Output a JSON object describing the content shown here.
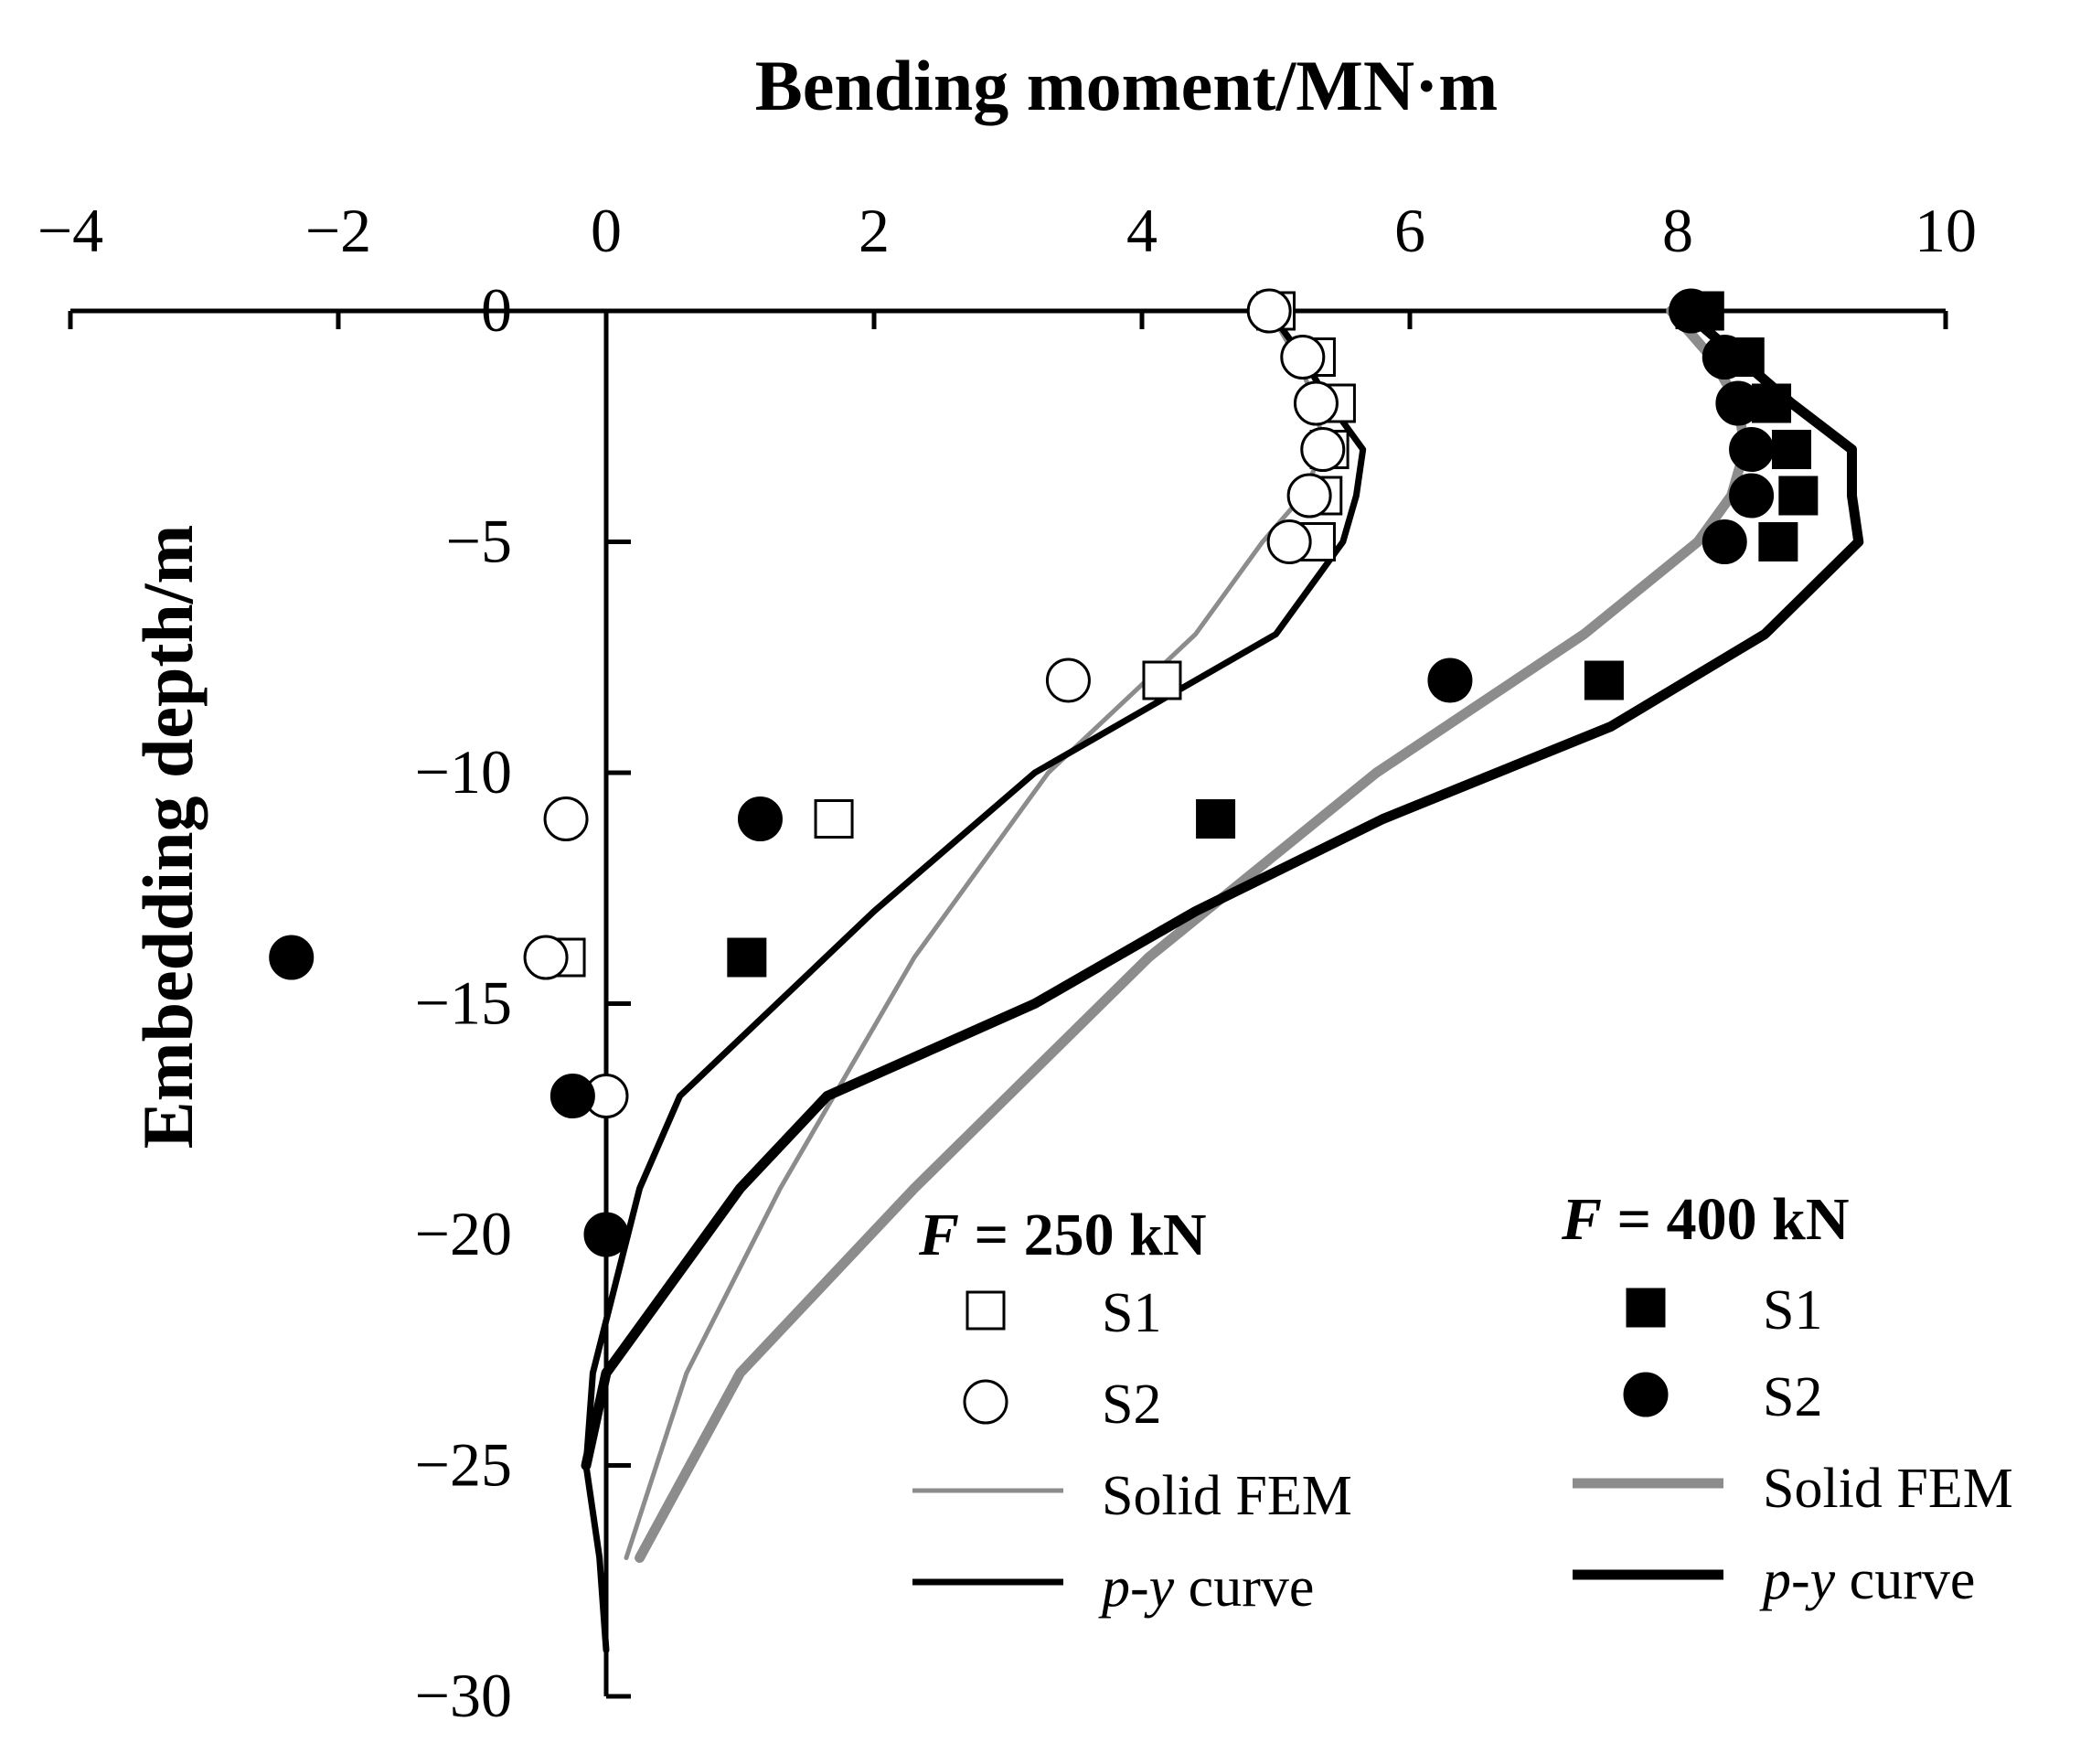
{
  "chart_data": {
    "type": "line",
    "title": "Bending moment/MN·m",
    "xlabel": "Bending moment/MN·m",
    "ylabel": "Embedding depth/m",
    "xlim": [
      -4,
      10
    ],
    "ylim": [
      -30,
      0
    ],
    "x_axis_position": "top",
    "x_ticks": [
      -4,
      -2,
      0,
      2,
      4,
      6,
      8,
      10
    ],
    "x_tick_labels": [
      "−4",
      "−2",
      "0",
      "2",
      "4",
      "6",
      "8",
      "10"
    ],
    "y_ticks": [
      0,
      -5,
      -10,
      -15,
      -20,
      -25,
      -30
    ],
    "y_tick_labels": [
      "0",
      "−5",
      "−10",
      "−15",
      "−20",
      "−25",
      "−30"
    ],
    "grid": false,
    "groups": [
      {
        "heading_var": "F",
        "heading_rest": " = 250 kN",
        "series": [
          {
            "name": "S1",
            "kind": "scatter",
            "marker": "square-open",
            "x": [
              5.0,
              5.3,
              5.45,
              5.4,
              5.35,
              5.3,
              4.15,
              1.7,
              -0.3
            ],
            "y": [
              0,
              -1,
              -2,
              -3,
              -4,
              -5,
              -8,
              -11,
              -14
            ]
          },
          {
            "name": "S2",
            "kind": "scatter",
            "marker": "circle-open",
            "x": [
              4.95,
              5.2,
              5.3,
              5.35,
              5.25,
              5.1,
              3.45,
              -0.3,
              -0.45,
              0.0
            ],
            "y": [
              0,
              -1,
              -2,
              -3,
              -4,
              -5,
              -8,
              -11,
              -14,
              -17
            ]
          },
          {
            "name": "Solid FEM",
            "kind": "line",
            "color": "#8c8c8c",
            "width": "thin",
            "x": [
              4.95,
              5.15,
              5.3,
              5.35,
              5.2,
              4.9,
              4.4,
              3.3,
              2.3,
              1.3,
              0.6,
              0.15
            ],
            "y": [
              0,
              -1,
              -2,
              -3,
              -4,
              -5,
              -7,
              -10,
              -14,
              -19,
              -23,
              -27
            ]
          },
          {
            "name": "p-y curve",
            "name_italic": "p-y",
            "name_rest": " curve",
            "kind": "line",
            "color": "#000000",
            "width": "medium",
            "x": [
              4.95,
              5.2,
              5.4,
              5.65,
              5.6,
              5.5,
              5.0,
              3.2,
              2.0,
              0.55,
              0.25,
              -0.1,
              -0.15,
              -0.05,
              0.0
            ],
            "y": [
              0,
              -1,
              -2,
              -3,
              -4,
              -5,
              -7,
              -10,
              -13,
              -17,
              -19,
              -23,
              -25,
              -27,
              -29
            ]
          }
        ]
      },
      {
        "heading_var": "F",
        "heading_rest": " = 400 kN",
        "series": [
          {
            "name": "S1",
            "kind": "scatter",
            "marker": "square-filled",
            "x": [
              8.2,
              8.5,
              8.7,
              8.85,
              8.9,
              8.75,
              7.45,
              4.55,
              1.05
            ],
            "y": [
              0,
              -1,
              -2,
              -3,
              -4,
              -5,
              -8,
              -11,
              -14
            ]
          },
          {
            "name": "S2",
            "kind": "scatter",
            "marker": "circle-filled",
            "x": [
              8.1,
              8.35,
              8.45,
              8.55,
              8.55,
              8.35,
              6.3,
              1.15,
              -2.35,
              -0.25,
              0.0
            ],
            "y": [
              0,
              -1,
              -2,
              -3,
              -4,
              -5,
              -8,
              -11,
              -14,
              -17,
              -20
            ]
          },
          {
            "name": "Solid FEM",
            "kind": "line",
            "color": "#8c8c8c",
            "width": "thick",
            "x": [
              7.95,
              8.25,
              8.45,
              8.5,
              8.4,
              8.15,
              7.3,
              5.75,
              4.05,
              2.3,
              1.0,
              0.25
            ],
            "y": [
              0,
              -1,
              -2,
              -3,
              -4,
              -5,
              -7,
              -10,
              -14,
              -19,
              -23,
              -27
            ]
          },
          {
            "name": "p-y curve",
            "name_italic": "p-y",
            "name_rest": " curve",
            "kind": "line",
            "color": "#000000",
            "width": "thick",
            "x": [
              8.05,
              8.45,
              8.85,
              9.3,
              9.3,
              9.35,
              8.65,
              7.5,
              5.8,
              4.4,
              3.2,
              1.65,
              1.0,
              0.0,
              -0.15
            ],
            "y": [
              0,
              -1,
              -2,
              -3,
              -4,
              -5,
              -7,
              -9,
              -11,
              -13,
              -15,
              -17,
              -19,
              -23,
              -25
            ]
          }
        ]
      }
    ]
  }
}
